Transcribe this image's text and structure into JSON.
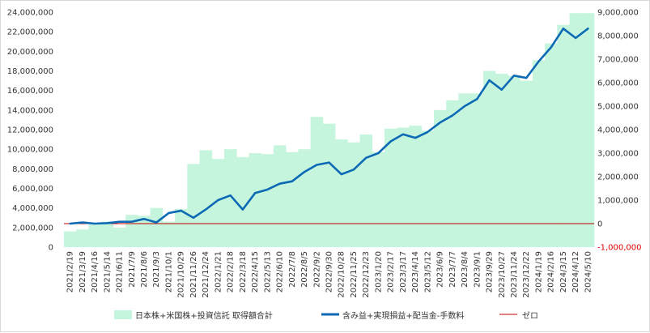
{
  "chart_data": {
    "type": "bar+line",
    "title": "",
    "xlabel": "",
    "ylabel": "",
    "left_axis": {
      "ylim": [
        0,
        24000000
      ],
      "ticks": [
        "0",
        "2,000,000",
        "4,000,000",
        "6,000,000",
        "8,000,000",
        "10,000,000",
        "12,000,000",
        "14,000,000",
        "16,000,000",
        "18,000,000",
        "20,000,000",
        "22,000,000",
        "24,000,000"
      ]
    },
    "right_axis": {
      "ylim": [
        -1000000,
        9000000
      ],
      "ticks": [
        "-1,000,000",
        "0",
        "1,000,000",
        "2,000,000",
        "3,000,000",
        "4,000,000",
        "5,000,000",
        "6,000,000",
        "7,000,000",
        "8,000,000",
        "9,000,000"
      ],
      "tick_values": [
        -1000000,
        0,
        1000000,
        2000000,
        3000000,
        4000000,
        5000000,
        6000000,
        7000000,
        8000000,
        9000000
      ]
    },
    "categories": [
      "2021/2/19",
      "2021/3/19",
      "2021/4/16",
      "2021/5/14",
      "2021/6/11",
      "2021/7/9",
      "2021/8/6",
      "2021/9/3",
      "2021/10/1",
      "2021/10/29",
      "2021/11/26",
      "2021/12/24",
      "2022/1/21",
      "2022/2/18",
      "2022/3/18",
      "2022/4/15",
      "2022/5/13",
      "2022/6/10",
      "2022/7/8",
      "2022/8/5",
      "2022/9/2",
      "2022/9/30",
      "2022/10/28",
      "2022/11/25",
      "2022/12/23",
      "2023/1/20",
      "2023/2/17",
      "2023/3/17",
      "2023/4/14",
      "2023/5/12",
      "2023/6/9",
      "2023/7/7",
      "2023/8/4",
      "2023/9/1",
      "2023/9/29",
      "2023/10/27",
      "2023/11/24",
      "2023/12/22",
      "2024/1/19",
      "2024/2/16",
      "2024/3/15",
      "2024/4/12",
      "2024/5/10"
    ],
    "series": [
      {
        "name": "日本株+米国株+投資信託 取得額合計",
        "kind": "bar",
        "axis": "left",
        "color": "#c6f5dd",
        "values": [
          1600000,
          1800000,
          2300000,
          2600000,
          2000000,
          3300000,
          3200000,
          4000000,
          2600000,
          3900000,
          8500000,
          9900000,
          9000000,
          10000000,
          9200000,
          9600000,
          9500000,
          10400000,
          9700000,
          10000000,
          13300000,
          12600000,
          11000000,
          10700000,
          11500000,
          9700000,
          12100000,
          12200000,
          12400000,
          11900000,
          14000000,
          15000000,
          15700000,
          15700000,
          18000000,
          17700000,
          17500000,
          17000000,
          19100000,
          20800000,
          22700000,
          23900000,
          23900000
        ]
      },
      {
        "name": "含み益+実現損益+配当金-手数料",
        "kind": "line",
        "axis": "right",
        "color": "#0c6ab5",
        "values": [
          0,
          50000,
          0,
          20000,
          80000,
          80000,
          200000,
          50000,
          450000,
          550000,
          250000,
          600000,
          1000000,
          1200000,
          600000,
          1300000,
          1450000,
          1700000,
          1800000,
          2200000,
          2500000,
          2600000,
          2100000,
          2300000,
          2800000,
          3000000,
          3500000,
          3800000,
          3650000,
          3900000,
          4300000,
          4600000,
          5000000,
          5300000,
          6100000,
          5700000,
          6300000,
          6200000,
          6900000,
          7500000,
          8300000,
          7900000,
          8300000
        ]
      },
      {
        "name": "ゼロ",
        "kind": "line",
        "axis": "right",
        "color": "#c00000",
        "values": [
          0,
          0,
          0,
          0,
          0,
          0,
          0,
          0,
          0,
          0,
          0,
          0,
          0,
          0,
          0,
          0,
          0,
          0,
          0,
          0,
          0,
          0,
          0,
          0,
          0,
          0,
          0,
          0,
          0,
          0,
          0,
          0,
          0,
          0,
          0,
          0,
          0,
          0,
          0,
          0,
          0,
          0,
          0
        ]
      }
    ],
    "grid": false,
    "legend_position": "bottom"
  }
}
